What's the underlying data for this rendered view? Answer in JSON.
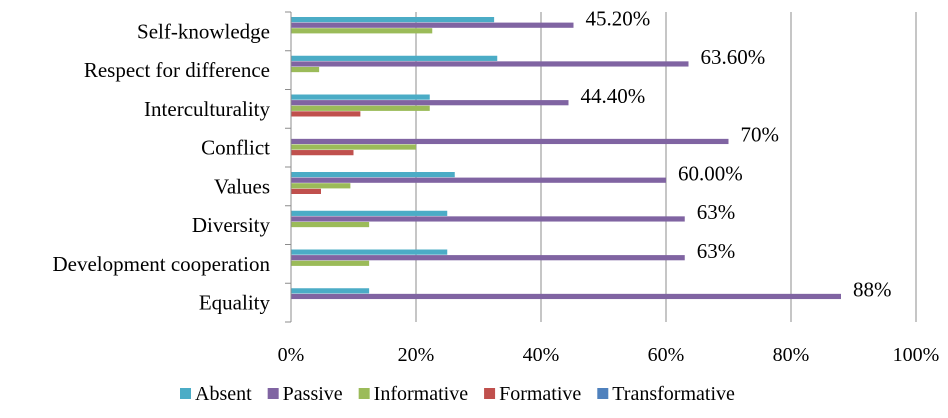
{
  "chart_data": {
    "type": "bar",
    "orientation": "horizontal",
    "title": "",
    "xlabel": "",
    "ylabel": "",
    "xlim": [
      0,
      1.0
    ],
    "x_ticks": [
      0,
      0.2,
      0.4,
      0.6,
      0.8,
      1.0
    ],
    "x_tick_labels": [
      "0%",
      "20%",
      "40%",
      "60%",
      "80%",
      "100%"
    ],
    "grid": "vertical",
    "legend_position": "bottom",
    "categories": [
      "Self-knowledge",
      "Respect for difference",
      "Interculturality",
      "Conflict",
      "Values",
      "Diversity",
      "Development cooperation",
      "Equality"
    ],
    "series": [
      {
        "name": "Absent",
        "color": "#4bacc6",
        "values": [
          0.325,
          0.33,
          0.222,
          0,
          0.262,
          0.25,
          0.25,
          0.125
        ]
      },
      {
        "name": "Passive",
        "color": "#8064a2",
        "values": [
          0.452,
          0.636,
          0.444,
          0.7,
          0.6,
          0.63,
          0.63,
          0.88
        ]
      },
      {
        "name": "Informative",
        "color": "#9bbb59",
        "values": [
          0.226,
          0.045,
          0.222,
          0.2,
          0.095,
          0.125,
          0.125,
          0
        ]
      },
      {
        "name": "Formative",
        "color": "#c0504d",
        "values": [
          0,
          0,
          0.111,
          0.1,
          0.048,
          0,
          0,
          0
        ]
      },
      {
        "name": "Transformative",
        "color": "#4f81bd",
        "values": [
          0,
          0,
          0,
          0,
          0,
          0,
          0,
          0
        ]
      }
    ],
    "data_labels": {
      "series": "Passive",
      "labels": [
        "45.20%",
        "63.60%",
        "44.40%",
        "70%",
        "60.00%",
        "63%",
        "63%",
        "88%"
      ]
    }
  }
}
